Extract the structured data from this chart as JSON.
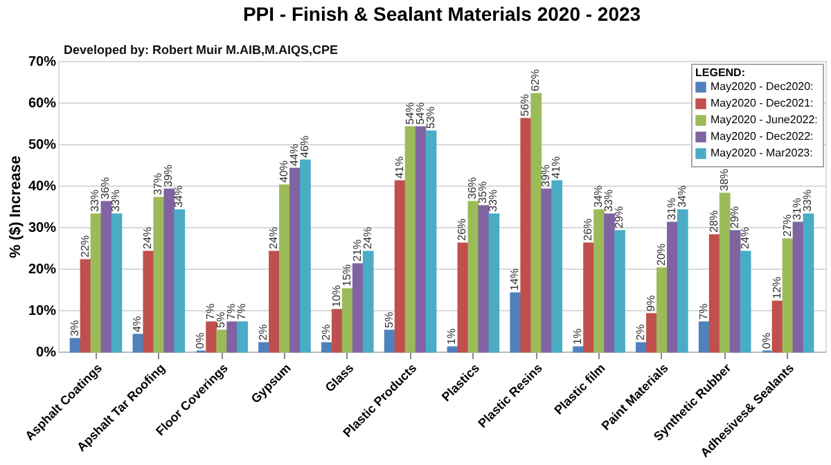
{
  "chart_data": {
    "type": "bar",
    "title": "PPI - Finish & Sealant Materials 2020 - 2023",
    "annotations": [
      "Developed by: Robert Muir M.AIB,M.AIQS,CPE"
    ],
    "ylabel": "% ($) Increase",
    "legend_title": "LEGEND:",
    "legend": "top right",
    "grid": "y",
    "categories": [
      "Asphalt Coatings",
      "Apshalt Tar Roofing",
      "Floor Coverings",
      "Gypsum",
      "Glass",
      "Plastic Products",
      "Plastics",
      "Plastic Resins",
      "Plastic film",
      "Paint Materials",
      "Synthetic Rubber",
      "Adhesives& Sealants"
    ],
    "ylim": [
      0,
      70
    ],
    "yticks": [
      {
        "value": 0,
        "label": "0%"
      },
      {
        "value": 10,
        "label": "10%"
      },
      {
        "value": 20,
        "label": "20%"
      },
      {
        "value": 30,
        "label": "30%"
      },
      {
        "value": 40,
        "label": "40%"
      },
      {
        "value": 50,
        "label": "50%"
      },
      {
        "value": 60,
        "label": "60%"
      },
      {
        "value": 70,
        "label": "70%"
      }
    ],
    "series": [
      {
        "name": "May2020 - Dec2020:",
        "color": "#4f81bd",
        "values": [
          3,
          4,
          0,
          2,
          2,
          5,
          1,
          14,
          1,
          2,
          7,
          0
        ],
        "value_labels": [
          "3%",
          "4%",
          "0%",
          "2%",
          "2%",
          "5%",
          "1%",
          "14%",
          "1%",
          "2%",
          "7%",
          "0%"
        ]
      },
      {
        "name": "May2020 - Dec2021:",
        "color": "#c0504d",
        "values": [
          22,
          24,
          7,
          24,
          10,
          41,
          26,
          56,
          26,
          9,
          28,
          12
        ],
        "value_labels": [
          "22%",
          "24%",
          "7%",
          "24%",
          "10%",
          "41%",
          "26%",
          "56%",
          "26%",
          "9%",
          "28%",
          "12%"
        ]
      },
      {
        "name": "May2020 - June2022:",
        "color": "#9bbb59",
        "values": [
          33,
          37,
          5,
          40,
          15,
          54,
          36,
          62,
          34,
          20,
          38,
          27
        ],
        "value_labels": [
          "33%",
          "37%",
          "5%",
          "40%",
          "15%",
          "54%",
          "36%",
          "62%",
          "34%",
          "20%",
          "38%",
          "27%"
        ]
      },
      {
        "name": "May2020 - Dec2022:",
        "color": "#8064a2",
        "values": [
          36,
          39,
          7,
          44,
          21,
          54,
          35,
          39,
          33,
          31,
          29,
          31
        ],
        "value_labels": [
          "36%",
          "39%",
          "7%",
          "44%",
          "21%",
          "54%",
          "35%",
          "39%",
          "33%",
          "31%",
          "29%",
          "31%"
        ]
      },
      {
        "name": "May2020 - Mar2023:",
        "color": "#4bacc6",
        "values": [
          33,
          34,
          7,
          46,
          24,
          53,
          33,
          41,
          29,
          34,
          24,
          33
        ],
        "value_labels": [
          "33%",
          "34%",
          "7%",
          "46%",
          "24%",
          "53%",
          "33%",
          "41%",
          "29%",
          "34%",
          "24%",
          "33%"
        ]
      }
    ]
  }
}
